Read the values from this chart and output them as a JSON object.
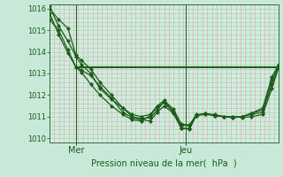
{
  "background_color": "#c8e8d8",
  "plot_bg_color": "#d0ece0",
  "grid_color_v": "#f0a0a0",
  "grid_color_h": "#a0cca0",
  "line_color": "#1a5c1a",
  "xlabel": "Pression niveau de la mer(  hPa  )",
  "ylim": [
    1009.8,
    1016.2
  ],
  "yticks": [
    1010,
    1011,
    1012,
    1013,
    1014,
    1015,
    1016
  ],
  "xlim": [
    0,
    1.0
  ],
  "xtick_positions": [
    0.115,
    0.595
  ],
  "xtick_labels": [
    "Mer",
    "Jeu"
  ],
  "vline_positions": [
    0.115,
    0.595
  ],
  "num_vgrid": 48,
  "series": [
    {
      "x": [
        0.0,
        0.04,
        0.08,
        0.115,
        0.14,
        0.18,
        0.22,
        0.27,
        0.32,
        0.36,
        0.4,
        0.44,
        0.47,
        0.5,
        0.54,
        0.575,
        0.61,
        0.64,
        0.68,
        0.72,
        0.76,
        0.8,
        0.84,
        0.88,
        0.93,
        0.97,
        1.0
      ],
      "y": [
        1015.5,
        1015.0,
        1014.1,
        1013.3,
        1013.15,
        1012.9,
        1012.4,
        1011.85,
        1011.2,
        1010.95,
        1010.85,
        1010.8,
        1011.2,
        1011.5,
        1011.15,
        1010.45,
        1010.42,
        1011.05,
        1011.1,
        1011.1,
        1011.0,
        1011.0,
        1010.95,
        1011.0,
        1011.1,
        1012.3,
        1013.3
      ],
      "marker": "D",
      "markersize": 2.2,
      "linewidth": 0.9
    },
    {
      "x": [
        0.0,
        0.04,
        0.08,
        0.115,
        0.14,
        0.18,
        0.22,
        0.27,
        0.32,
        0.36,
        0.4,
        0.44,
        0.47,
        0.5,
        0.54,
        0.575,
        0.61,
        0.64,
        0.68,
        0.72,
        0.76,
        0.8,
        0.84,
        0.88,
        0.93,
        0.97,
        1.0
      ],
      "y": [
        1015.8,
        1014.8,
        1013.95,
        1013.3,
        1013.05,
        1012.5,
        1012.0,
        1011.5,
        1011.1,
        1010.85,
        1010.8,
        1011.05,
        1011.45,
        1011.65,
        1011.2,
        1010.47,
        1010.44,
        1011.05,
        1011.15,
        1011.05,
        1011.0,
        1010.95,
        1011.0,
        1011.1,
        1011.2,
        1012.5,
        1013.3
      ],
      "marker": "D",
      "markersize": 2.2,
      "linewidth": 0.9
    },
    {
      "x": [
        0.0,
        0.04,
        0.08,
        0.115,
        0.14,
        0.18,
        0.22,
        0.27,
        0.32,
        0.36,
        0.4,
        0.44,
        0.47,
        0.5,
        0.54,
        0.575,
        0.61,
        0.64,
        0.68,
        0.72,
        0.76,
        0.8,
        0.84,
        0.88,
        0.93,
        0.97,
        1.0
      ],
      "y": [
        1016.1,
        1015.2,
        1014.5,
        1013.8,
        1013.4,
        1013.0,
        1012.3,
        1011.8,
        1011.4,
        1011.0,
        1010.9,
        1010.95,
        1011.3,
        1011.7,
        1011.25,
        1010.6,
        1010.57,
        1011.1,
        1011.1,
        1011.05,
        1011.0,
        1010.95,
        1011.0,
        1011.15,
        1011.3,
        1012.7,
        1013.35
      ],
      "marker": "D",
      "markersize": 2.2,
      "linewidth": 0.9
    },
    {
      "x": [
        0.115,
        1.0
      ],
      "y": [
        1013.3,
        1013.3
      ],
      "marker": null,
      "markersize": 0,
      "linewidth": 1.4
    },
    {
      "x": [
        0.0,
        0.04,
        0.08,
        0.115,
        0.14,
        0.18,
        0.22,
        0.27,
        0.32,
        0.36,
        0.4,
        0.44,
        0.47,
        0.5,
        0.54,
        0.575,
        0.61,
        0.64,
        0.68,
        0.72,
        0.76,
        0.8,
        0.84,
        0.88,
        0.93,
        0.97,
        1.0
      ],
      "y": [
        1016.0,
        1015.5,
        1015.1,
        1013.85,
        1013.6,
        1013.2,
        1012.6,
        1012.0,
        1011.4,
        1011.1,
        1011.0,
        1011.1,
        1011.5,
        1011.75,
        1011.35,
        1010.65,
        1010.62,
        1011.05,
        1011.15,
        1011.05,
        1011.0,
        1011.0,
        1011.0,
        1011.15,
        1011.4,
        1012.85,
        1013.4
      ],
      "marker": "D",
      "markersize": 2.2,
      "linewidth": 0.9
    }
  ]
}
